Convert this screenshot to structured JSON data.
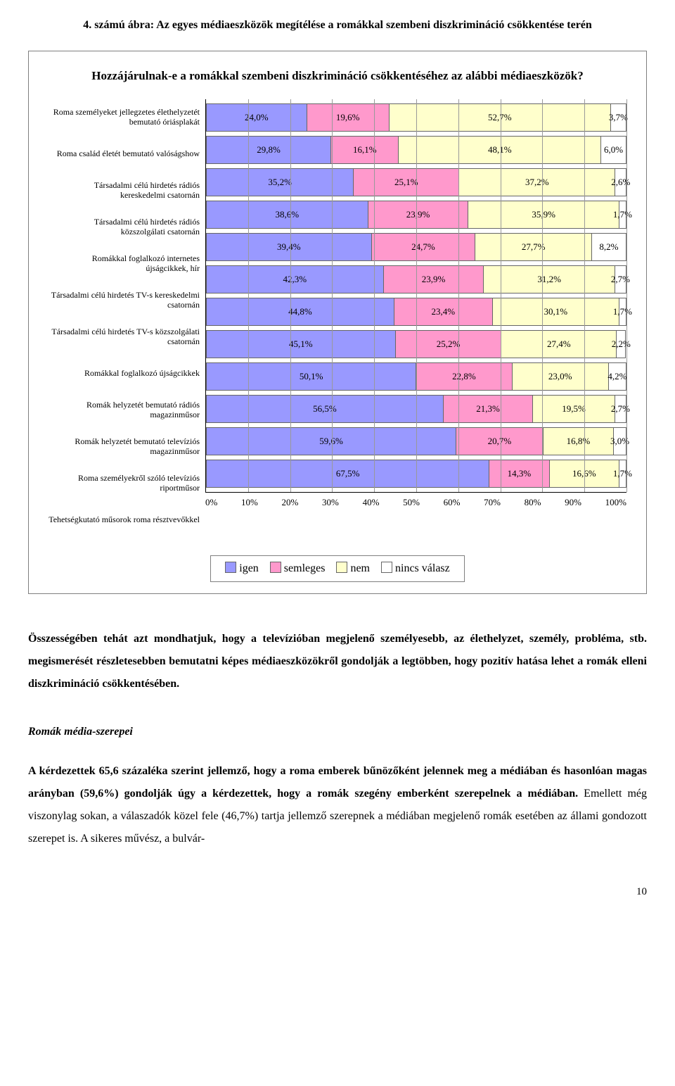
{
  "figure_title": "4. számú ábra: Az egyes médiaeszközök megítélése a romákkal szembeni diszkrimináció csökkentése terén",
  "chart": {
    "question": "Hozzájárulnak-e a romákkal szembeni diszkrimináció csökkentéséhez az alábbi médiaeszközök?",
    "type": "stacked-bar-horizontal",
    "colors": {
      "igen": "#9999ff",
      "semleges": "#ff99cc",
      "nem": "#ffffcc",
      "nincs": "#ffffff",
      "grid": "#999999",
      "border": "#666666",
      "background": "#ffffff"
    },
    "legend": [
      {
        "key": "igen",
        "label": "igen"
      },
      {
        "key": "semleges",
        "label": "semleges"
      },
      {
        "key": "nem",
        "label": "nem"
      },
      {
        "key": "nincs",
        "label": "nincs válasz"
      }
    ],
    "axis": {
      "ticks": [
        "0%",
        "10%",
        "20%",
        "30%",
        "40%",
        "50%",
        "60%",
        "70%",
        "80%",
        "90%",
        "100%"
      ],
      "tick_step": 10
    },
    "label_fontsize": 12,
    "value_fontsize": 13,
    "rows": [
      {
        "label": "Roma személyeket jellegzetes élethelyzetét bemutató óriásplakát",
        "values": {
          "igen": 24.0,
          "semleges": 19.6,
          "nem": 52.7,
          "nincs": 3.7
        },
        "display": [
          "24,0%",
          "19,6%",
          "52,7%",
          "3,7%"
        ]
      },
      {
        "label": "Roma család életét bemutató valóságshow",
        "values": {
          "igen": 29.8,
          "semleges": 16.1,
          "nem": 48.1,
          "nincs": 6.0
        },
        "display": [
          "29,8%",
          "16,1%",
          "48,1%",
          "6,0%"
        ]
      },
      {
        "label": "Társadalmi célú hirdetés rádiós kereskedelmi csatornán",
        "values": {
          "igen": 35.2,
          "semleges": 25.1,
          "nem": 37.2,
          "nincs": 2.6
        },
        "display": [
          "35,2%",
          "25,1%",
          "37,2%",
          "2,6%"
        ]
      },
      {
        "label": "Társadalmi célú hirdetés rádiós közszolgálati csatornán",
        "values": {
          "igen": 38.6,
          "semleges": 23.9,
          "nem": 35.9,
          "nincs": 1.7
        },
        "display": [
          "38,6%",
          "23,9%",
          "35,9%",
          "1,7%"
        ]
      },
      {
        "label": "Romákkal foglalkozó internetes újságcikkek, hír",
        "values": {
          "igen": 39.4,
          "semleges": 24.7,
          "nem": 27.7,
          "nincs": 8.2
        },
        "display": [
          "39,4%",
          "24,7%",
          "27,7%",
          "8,2%"
        ]
      },
      {
        "label": "Társadalmi célú hirdetés TV-s kereskedelmi csatornán",
        "values": {
          "igen": 42.3,
          "semleges": 23.9,
          "nem": 31.2,
          "nincs": 2.7
        },
        "display": [
          "42,3%",
          "23,9%",
          "31,2%",
          "2,7%"
        ]
      },
      {
        "label": "Társadalmi célú hirdetés TV-s közszolgálati csatornán",
        "values": {
          "igen": 44.8,
          "semleges": 23.4,
          "nem": 30.1,
          "nincs": 1.7
        },
        "display": [
          "44,8%",
          "23,4%",
          "30,1%",
          "1,7%"
        ]
      },
      {
        "label": "Romákkal foglalkozó újságcikkek",
        "values": {
          "igen": 45.1,
          "semleges": 25.2,
          "nem": 27.4,
          "nincs": 2.2
        },
        "display": [
          "45,1%",
          "25,2%",
          "27,4%",
          "2,2%"
        ]
      },
      {
        "label": "Romák helyzetét bemutató rádiós magazinműsor",
        "values": {
          "igen": 50.1,
          "semleges": 22.8,
          "nem": 23.0,
          "nincs": 4.2
        },
        "display": [
          "50,1%",
          "22,8%",
          "23,0%",
          "4,2%"
        ]
      },
      {
        "label": "Romák helyzetét bemutató televíziós magazinműsor",
        "values": {
          "igen": 56.5,
          "semleges": 21.3,
          "nem": 19.5,
          "nincs": 2.7
        },
        "display": [
          "56,5%",
          "21,3%",
          "19,5%",
          "2,7%"
        ]
      },
      {
        "label": "Roma személyekről szóló televíziós riportműsor",
        "values": {
          "igen": 59.6,
          "semleges": 20.7,
          "nem": 16.8,
          "nincs": 3.0
        },
        "display": [
          "59,6%",
          "20,7%",
          "16,8%",
          "3,0%"
        ]
      },
      {
        "label": "Tehetségkutató műsorok roma résztvevőkkel",
        "values": {
          "igen": 67.5,
          "semleges": 14.3,
          "nem": 16.6,
          "nincs": 1.7
        },
        "display": [
          "67,5%",
          "14,3%",
          "16,6%",
          "1,7%"
        ]
      }
    ]
  },
  "paragraphs": [
    "Összességében tehát azt mondhatjuk, hogy a televízióban megjelenő személyesebb, az élethelyzet, személy, probléma, stb. megismerését részletesebben bemutatni képes médiaeszközökről gondolják a legtöbben, hogy pozitív hatása lehet a romák elleni diszkrimináció csökkentésében."
  ],
  "section_title": "Romák média-szerepei",
  "paragraph2": "A kérdezettek 65,6 százaléka szerint jellemző, hogy a roma emberek bűnözőként jelennek meg a médiában és hasonlóan magas arányban (59,6%) gondolják úgy a kérdezettek, hogy a romák szegény emberként szerepelnek a médiában.",
  "paragraph2_tail": " Emellett még viszonylag sokan, a válaszadók közel fele (46,7%) tartja jellemző szerepnek a médiában megjelenő romák esetében az állami gondozott szerepet is. A sikeres művész, a bulvár-",
  "page_number": "10"
}
